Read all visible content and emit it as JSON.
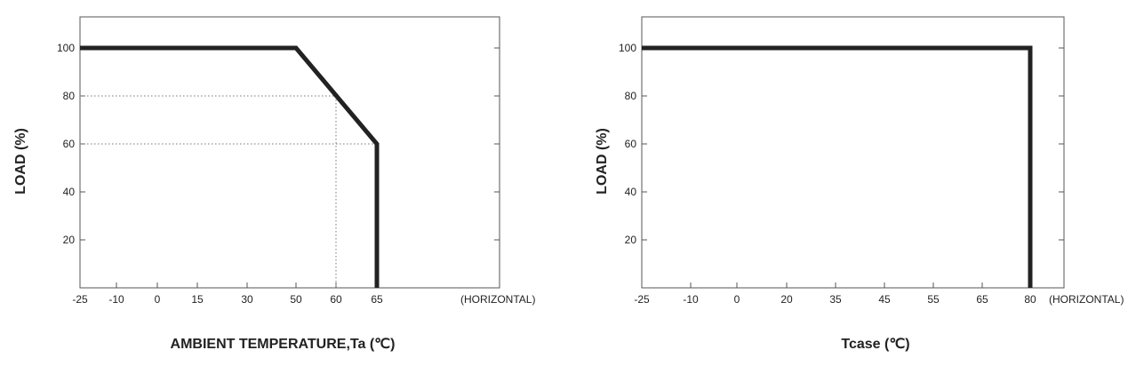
{
  "chart_data": [
    {
      "type": "line",
      "title": "",
      "xlabel": "AMBIENT TEMPERATURE,Ta (℃)",
      "ylabel": "LOAD (%)",
      "x_note": "(HORIZONTAL)",
      "x_ticks": [
        -25,
        -10,
        0,
        15,
        30,
        50,
        60,
        65
      ],
      "y_ticks": [
        20,
        40,
        60,
        80,
        100
      ],
      "ylim": [
        0,
        110
      ],
      "series": [
        {
          "x": [
            -25,
            50,
            65,
            65
          ],
          "y": [
            100,
            100,
            60,
            0
          ]
        }
      ],
      "reference_lines": [
        {
          "x": 60,
          "y": 80
        },
        {
          "x": 65,
          "y": 60
        }
      ],
      "grid": false
    },
    {
      "type": "line",
      "title": "",
      "xlabel": "Tcase (℃)",
      "ylabel": "LOAD (%)",
      "x_note": "(HORIZONTAL)",
      "x_ticks": [
        -25,
        -10,
        0,
        20,
        35,
        45,
        55,
        65,
        80
      ],
      "y_ticks": [
        20,
        40,
        60,
        80,
        100
      ],
      "ylim": [
        0,
        110
      ],
      "series": [
        {
          "x": [
            -25,
            80,
            80
          ],
          "y": [
            100,
            100,
            0
          ]
        }
      ],
      "reference_lines": [],
      "grid": false
    }
  ]
}
